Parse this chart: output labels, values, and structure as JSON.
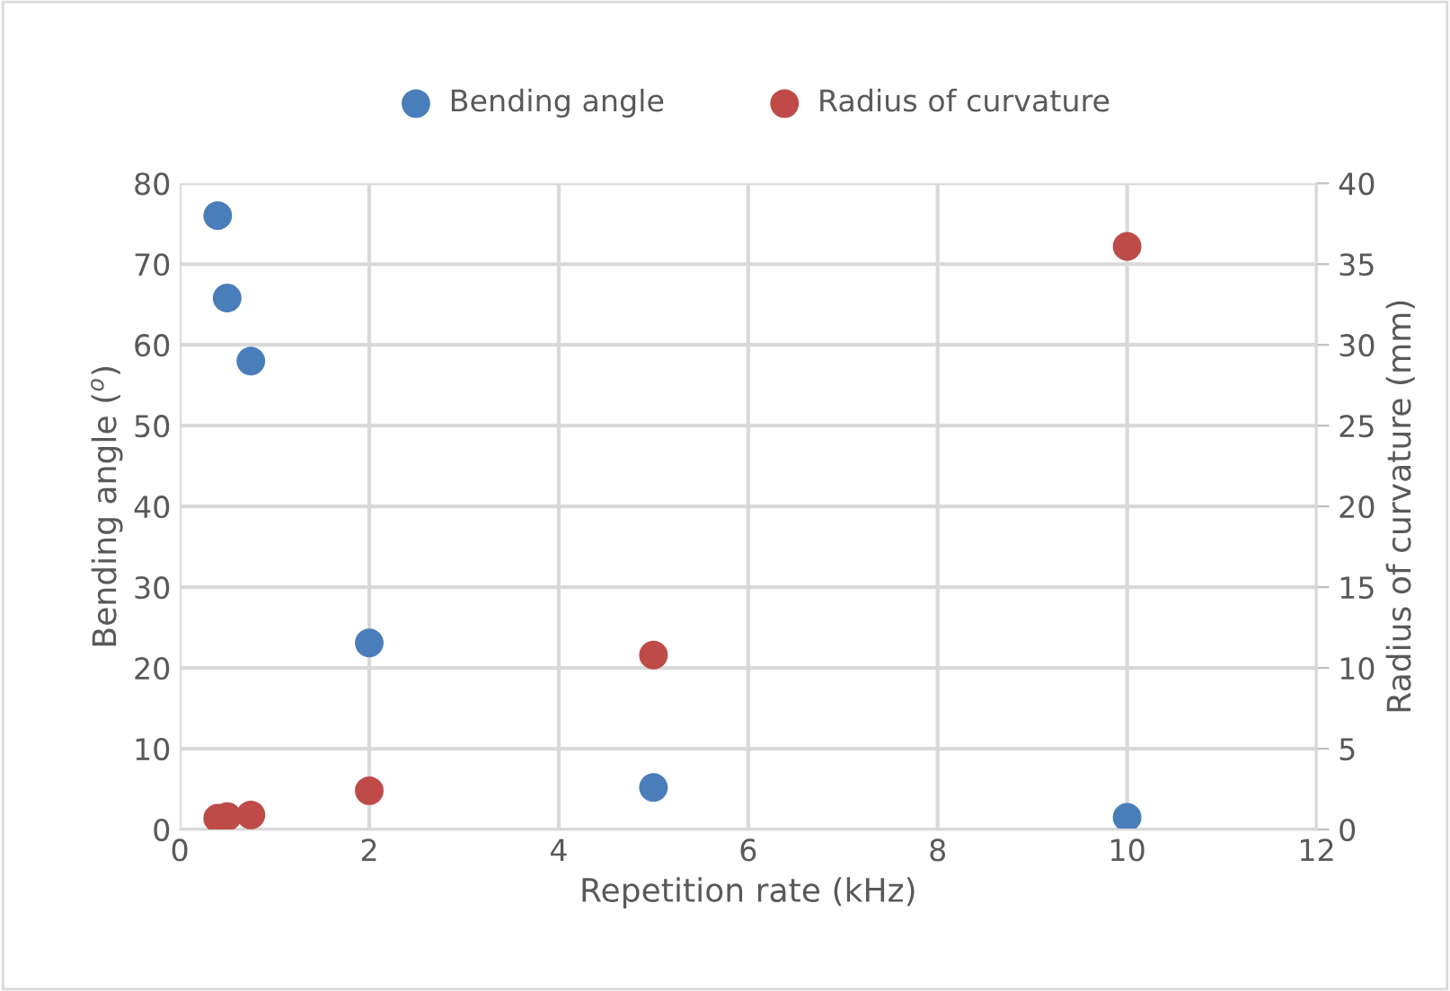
{
  "chart_data": {
    "type": "scatter",
    "xlabel": "Repetition rate (kHz)",
    "ylabel": "Bending angle ($^{o}$)",
    "y2label": "Radius of curvature (mm)",
    "xlim": [
      0,
      12
    ],
    "xticks": [
      0,
      2,
      4,
      6,
      8,
      10,
      12
    ],
    "ylim": [
      0,
      80
    ],
    "yticks": [
      0,
      10,
      20,
      30,
      40,
      50,
      60,
      70,
      80
    ],
    "y2lim": [
      0,
      40
    ],
    "y2ticks": [
      0,
      5,
      10,
      15,
      20,
      25,
      30,
      35,
      40
    ],
    "grid": true,
    "legend": "top",
    "marker": "circle",
    "series": [
      {
        "name": "Bending angle",
        "color": "#4a7ebb",
        "x": [
          0.4,
          0.5,
          0.75,
          2,
          5,
          10
        ],
        "values": [
          76,
          65.8,
          58,
          23.1,
          5.2,
          1.5
        ]
      },
      {
        "name": "Radius of curvature",
        "color": "#be4b48",
        "axis": "y2",
        "x": [
          0.4,
          0.5,
          0.75,
          2,
          5,
          10
        ],
        "values": [
          0.7,
          0.8,
          0.9,
          2.4,
          10.8,
          36.1
        ]
      }
    ]
  }
}
